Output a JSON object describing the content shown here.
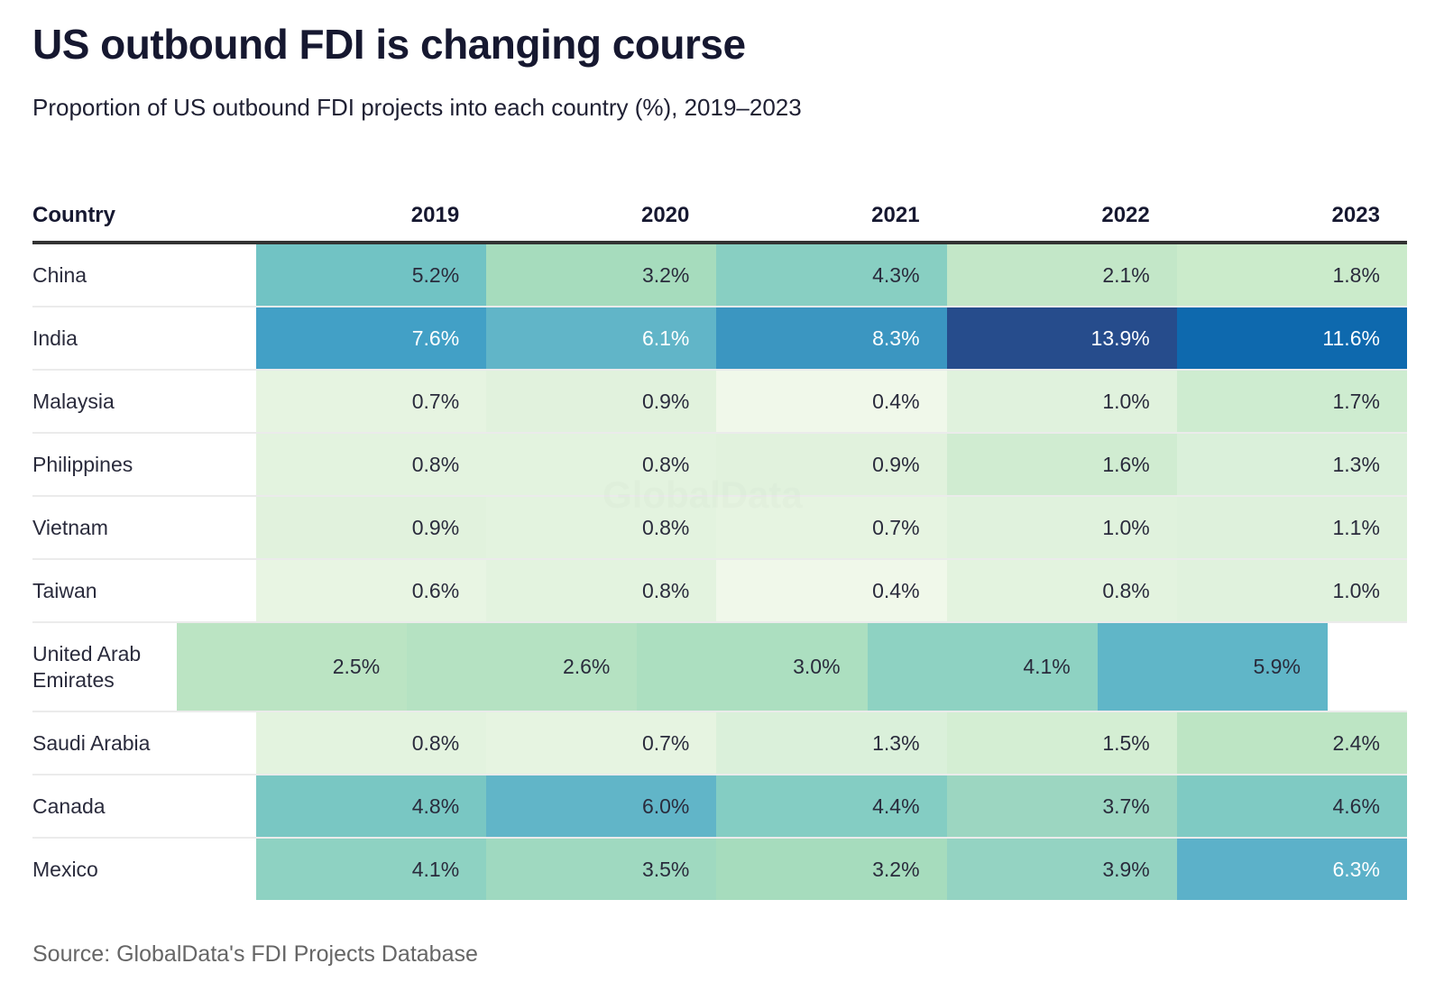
{
  "header": {
    "title": "US outbound FDI is changing course",
    "subtitle": "Proportion of US outbound FDI projects into each country (%), 2019–2023"
  },
  "source": "Source: GlobalData's FDI Projects Database",
  "watermark": "GlobalData",
  "chart_data": {
    "type": "heatmap",
    "title": "US outbound FDI is changing course",
    "subtitle": "Proportion of US outbound FDI projects into each country (%), 2019–2023",
    "row_header": "Country",
    "columns": [
      "2019",
      "2020",
      "2021",
      "2022",
      "2023"
    ],
    "rows": [
      {
        "country": "China",
        "values": [
          5.2,
          3.2,
          4.3,
          2.1,
          1.8
        ],
        "labels": [
          "5.2%",
          "3.2%",
          "4.3%",
          "2.1%",
          "1.8%"
        ],
        "colors": [
          "#71c3c4",
          "#a6dcbd",
          "#88cfc2",
          "#c3e7c8",
          "#cbebcb"
        ]
      },
      {
        "country": "India",
        "values": [
          7.6,
          6.1,
          8.3,
          13.9,
          11.6
        ],
        "labels": [
          "7.6%",
          "6.1%",
          "8.3%",
          "13.9%",
          "11.6%"
        ],
        "colors": [
          "#42a0c6",
          "#61b5c8",
          "#3b96c1",
          "#264c8c",
          "#0e69ae"
        ]
      },
      {
        "country": "Malaysia",
        "values": [
          0.7,
          0.9,
          0.4,
          1.0,
          1.7
        ],
        "labels": [
          "0.7%",
          "0.9%",
          "0.4%",
          "1.0%",
          "1.7%"
        ],
        "colors": [
          "#e6f4e1",
          "#e1f2dd",
          "#f0f8ea",
          "#e0f2dd",
          "#ceecd0"
        ]
      },
      {
        "country": "Philippines",
        "values": [
          0.8,
          0.8,
          0.9,
          1.6,
          1.3
        ],
        "labels": [
          "0.8%",
          "0.8%",
          "0.9%",
          "1.6%",
          "1.3%"
        ],
        "colors": [
          "#e3f3df",
          "#e3f3df",
          "#e1f2dd",
          "#d0ecd1",
          "#daf0da"
        ]
      },
      {
        "country": "Vietnam",
        "values": [
          0.9,
          0.8,
          0.7,
          1.0,
          1.1
        ],
        "labels": [
          "0.9%",
          "0.8%",
          "0.7%",
          "1.0%",
          "1.1%"
        ],
        "colors": [
          "#e1f2dd",
          "#e3f3df",
          "#e6f4e1",
          "#e0f2dd",
          "#def1dc"
        ]
      },
      {
        "country": "Taiwan",
        "values": [
          0.6,
          0.8,
          0.4,
          0.8,
          1.0
        ],
        "labels": [
          "0.6%",
          "0.8%",
          "0.4%",
          "0.8%",
          "1.0%"
        ],
        "colors": [
          "#e8f5e3",
          "#e3f3df",
          "#f0f8ea",
          "#e3f3df",
          "#e0f2dd"
        ]
      },
      {
        "country": "United Arab Emirates",
        "values": [
          2.5,
          2.6,
          3.0,
          4.1,
          5.9
        ],
        "labels": [
          "2.5%",
          "2.6%",
          "3.0%",
          "4.1%",
          "5.9%"
        ],
        "colors": [
          "#bbe4c3",
          "#b5e2c2",
          "#acdfc0",
          "#8ed2c2",
          "#60b6c8"
        ]
      },
      {
        "country": "Saudi Arabia",
        "values": [
          0.8,
          0.7,
          1.3,
          1.5,
          2.4
        ],
        "labels": [
          "0.8%",
          "0.7%",
          "1.3%",
          "1.5%",
          "2.4%"
        ],
        "colors": [
          "#e3f3df",
          "#e6f4e1",
          "#daf0da",
          "#d4eed3",
          "#bde5c4"
        ]
      },
      {
        "country": "Canada",
        "values": [
          4.8,
          6.0,
          4.4,
          3.7,
          4.6
        ],
        "labels": [
          "4.8%",
          "6.0%",
          "4.4%",
          "3.7%",
          "4.6%"
        ],
        "colors": [
          "#79c7c3",
          "#61b5c8",
          "#84cdc3",
          "#9cd6c1",
          "#7fcac3"
        ]
      },
      {
        "country": "Mexico",
        "values": [
          4.1,
          3.5,
          3.2,
          3.9,
          6.3
        ],
        "labels": [
          "4.1%",
          "3.5%",
          "3.2%",
          "3.9%",
          "6.3%"
        ],
        "colors": [
          "#8ed2c2",
          "#9fd9c0",
          "#a6dcbd",
          "#94d3c2",
          "#5cb1c9"
        ]
      }
    ],
    "white_text_threshold": 6.05,
    "color_scale": "green-to-blue sequential (light green low, dark blue high)"
  }
}
